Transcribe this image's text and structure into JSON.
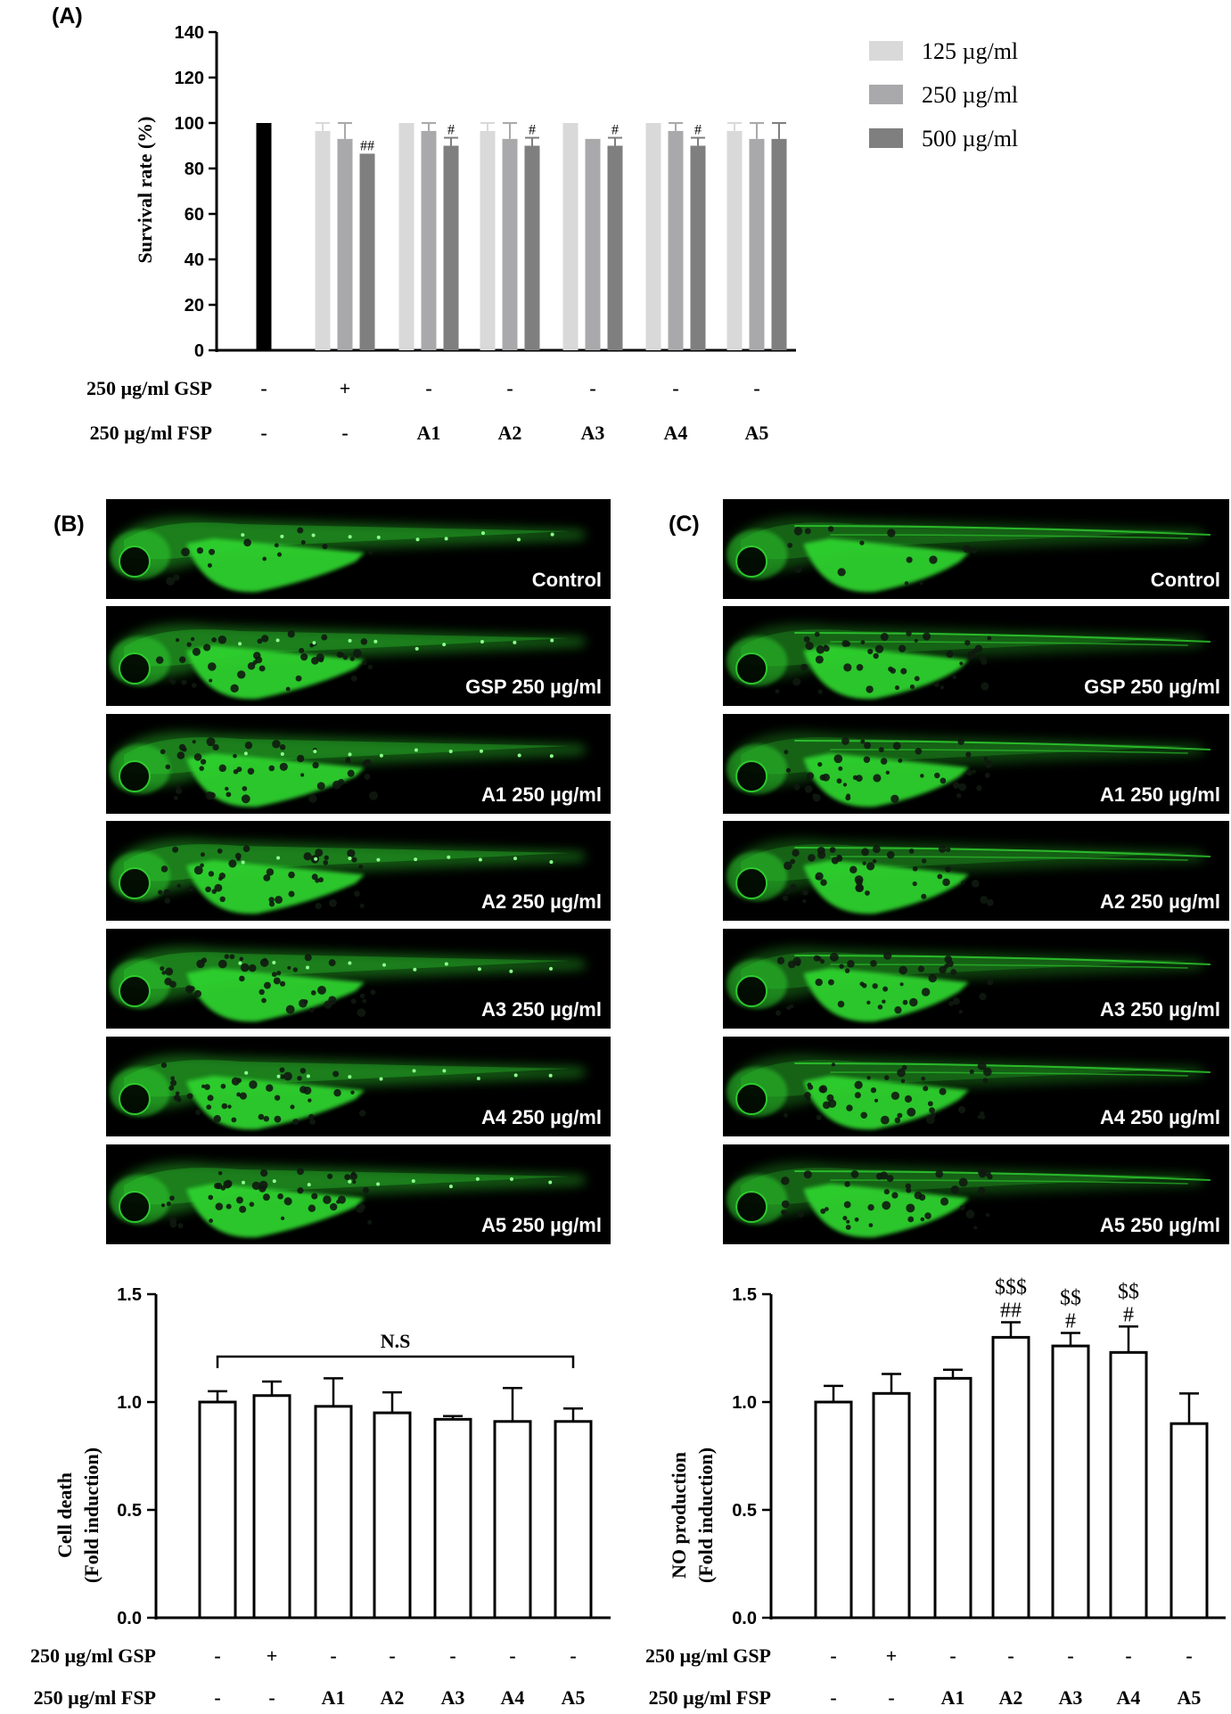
{
  "colors": {
    "control": "#000000",
    "c125": "#d9d9d9",
    "c250": "#a9a9ab",
    "c500": "#7f7f7f",
    "fluor": "#2fd12f",
    "spot": "#101a10"
  },
  "panels": {
    "A": {
      "label": "(A)"
    },
    "B": {
      "label": "(B)",
      "images": [
        "Control",
        "GSP 250 µg/ml",
        "A1 250 µg/ml",
        "A2 250 µg/ml",
        "A3 250 µg/ml",
        "A4 250 µg/ml",
        "A5 250 µg/ml"
      ]
    },
    "C": {
      "label": "(C)",
      "images": [
        "Control",
        "GSP 250 µg/ml",
        "A1 250 µg/ml",
        "A2 250 µg/ml",
        "A3 250 µg/ml",
        "A4 250 µg/ml",
        "A5 250 µg/ml"
      ]
    }
  },
  "chart_data": [
    {
      "id": "A",
      "type": "bar",
      "ylabel": "Survival rate (%)",
      "ylim": [
        0,
        140
      ],
      "yticks": [
        0,
        20,
        40,
        60,
        80,
        100,
        120,
        140
      ],
      "legend": {
        "placement": "top-right",
        "entries": [
          {
            "name": "125 µg/ml",
            "color": "#d9d9d9"
          },
          {
            "name": "250 µg/ml",
            "color": "#a9a9ab"
          },
          {
            "name": "500 µg/ml",
            "color": "#7f7f7f"
          }
        ]
      },
      "row_labels": [
        "250 µg/ml GSP",
        "250 µg/ml FSP"
      ],
      "groups": [
        {
          "gsp": "-",
          "fsp": "-",
          "bars": [
            {
              "series": "control",
              "value": 100,
              "err": 0,
              "sig": ""
            }
          ]
        },
        {
          "gsp": "+",
          "fsp": "-",
          "bars": [
            {
              "series": "125 µg/ml",
              "value": 96.5,
              "err": 3.5,
              "sig": ""
            },
            {
              "series": "250 µg/ml",
              "value": 93,
              "err": 7,
              "sig": ""
            },
            {
              "series": "500 µg/ml",
              "value": 86.5,
              "err": 0,
              "sig": "##"
            }
          ]
        },
        {
          "gsp": "-",
          "fsp": "A1",
          "bars": [
            {
              "series": "125 µg/ml",
              "value": 100,
              "err": 0,
              "sig": ""
            },
            {
              "series": "250 µg/ml",
              "value": 96.5,
              "err": 3.5,
              "sig": ""
            },
            {
              "series": "500 µg/ml",
              "value": 90,
              "err": 3.5,
              "sig": "#"
            }
          ]
        },
        {
          "gsp": "-",
          "fsp": "A2",
          "bars": [
            {
              "series": "125 µg/ml",
              "value": 96.5,
              "err": 3.5,
              "sig": ""
            },
            {
              "series": "250 µg/ml",
              "value": 93,
              "err": 7,
              "sig": ""
            },
            {
              "series": "500 µg/ml",
              "value": 90,
              "err": 3.5,
              "sig": "#"
            }
          ]
        },
        {
          "gsp": "-",
          "fsp": "A3",
          "bars": [
            {
              "series": "125 µg/ml",
              "value": 100,
              "err": 0,
              "sig": ""
            },
            {
              "series": "250 µg/ml",
              "value": 93,
              "err": 0,
              "sig": ""
            },
            {
              "series": "500 µg/ml",
              "value": 90,
              "err": 3.5,
              "sig": "#"
            }
          ]
        },
        {
          "gsp": "-",
          "fsp": "A4",
          "bars": [
            {
              "series": "125 µg/ml",
              "value": 100,
              "err": 0,
              "sig": ""
            },
            {
              "series": "250 µg/ml",
              "value": 96.5,
              "err": 3.5,
              "sig": ""
            },
            {
              "series": "500 µg/ml",
              "value": 90,
              "err": 3.5,
              "sig": "#"
            }
          ]
        },
        {
          "gsp": "-",
          "fsp": "A5",
          "bars": [
            {
              "series": "125 µg/ml",
              "value": 96.5,
              "err": 3.5,
              "sig": ""
            },
            {
              "series": "250 µg/ml",
              "value": 93,
              "err": 7,
              "sig": ""
            },
            {
              "series": "500 µg/ml",
              "value": 93,
              "err": 7,
              "sig": ""
            }
          ]
        }
      ]
    },
    {
      "id": "B",
      "type": "bar",
      "ylabel": [
        "Cell death",
        "(Fold induction)"
      ],
      "ylim": [
        0,
        1.5
      ],
      "yticks": [
        "0.0",
        "0.5",
        "1.0",
        "1.5"
      ],
      "annotation": "N.S",
      "row_labels": [
        "250 µg/ml GSP",
        "250 µg/ml FSP"
      ],
      "groups": [
        {
          "gsp": "-",
          "fsp": "-",
          "value": 1.0,
          "err": 0.05,
          "sig": []
        },
        {
          "gsp": "+",
          "fsp": "-",
          "value": 1.03,
          "err": 0.065,
          "sig": []
        },
        {
          "gsp": "-",
          "fsp": "A1",
          "value": 0.98,
          "err": 0.13,
          "sig": []
        },
        {
          "gsp": "-",
          "fsp": "A2",
          "value": 0.95,
          "err": 0.095,
          "sig": []
        },
        {
          "gsp": "-",
          "fsp": "A3",
          "value": 0.92,
          "err": 0.015,
          "sig": []
        },
        {
          "gsp": "-",
          "fsp": "A4",
          "value": 0.91,
          "err": 0.155,
          "sig": []
        },
        {
          "gsp": "-",
          "fsp": "A5",
          "value": 0.91,
          "err": 0.06,
          "sig": []
        }
      ]
    },
    {
      "id": "C",
      "type": "bar",
      "ylabel": [
        "NO production",
        "(Fold induction)"
      ],
      "ylim": [
        0,
        1.5
      ],
      "yticks": [
        "0.0",
        "0.5",
        "1.0",
        "1.5"
      ],
      "row_labels": [
        "250 µg/ml GSP",
        "250 µg/ml FSP"
      ],
      "groups": [
        {
          "gsp": "-",
          "fsp": "-",
          "value": 1.0,
          "err": 0.075,
          "sig": []
        },
        {
          "gsp": "+",
          "fsp": "-",
          "value": 1.04,
          "err": 0.09,
          "sig": []
        },
        {
          "gsp": "-",
          "fsp": "A1",
          "value": 1.11,
          "err": 0.04,
          "sig": []
        },
        {
          "gsp": "-",
          "fsp": "A2",
          "value": 1.3,
          "err": 0.07,
          "sig": [
            "$$$",
            "##"
          ]
        },
        {
          "gsp": "-",
          "fsp": "A3",
          "value": 1.26,
          "err": 0.06,
          "sig": [
            "$$",
            "#"
          ]
        },
        {
          "gsp": "-",
          "fsp": "A4",
          "value": 1.23,
          "err": 0.12,
          "sig": [
            "$$",
            "#"
          ]
        },
        {
          "gsp": "-",
          "fsp": "A5",
          "value": 0.9,
          "err": 0.14,
          "sig": []
        }
      ]
    }
  ]
}
